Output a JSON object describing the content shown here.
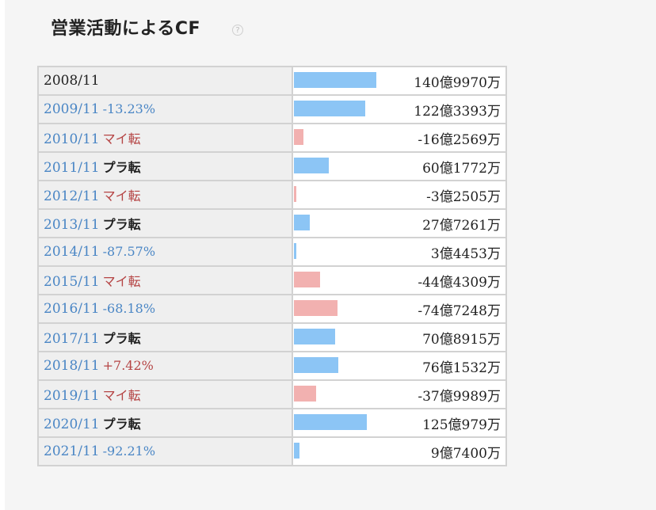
{
  "title": "営業活動によるCF",
  "help_icon_glyph": "?",
  "colors": {
    "positive_bar": "#8cc5f5",
    "negative_bar": "#f2b1b0",
    "link_blue": "#4a86c5",
    "turn_red": "#b54444"
  },
  "chart_data": {
    "type": "bar",
    "unit": "億円",
    "categories": [
      "2008/11",
      "2009/11",
      "2010/11",
      "2011/11",
      "2012/11",
      "2013/11",
      "2014/11",
      "2015/11",
      "2016/11",
      "2017/11",
      "2018/11",
      "2019/11",
      "2020/11",
      "2021/11"
    ],
    "values": [
      140.997,
      122.3393,
      -16.2569,
      60.1772,
      -3.2505,
      27.7261,
      3.4453,
      -44.4309,
      -74.7248,
      70.8915,
      76.1532,
      -37.9989,
      125.0979,
      9.74
    ],
    "rows": [
      {
        "year": "2008/11",
        "change": "",
        "change_style": "none",
        "value_label": "140億9970万",
        "value": 140.997
      },
      {
        "year": "2009/11",
        "change": "-13.23%",
        "change_style": "blue",
        "value_label": "122億3393万",
        "value": 122.3393
      },
      {
        "year": "2010/11",
        "change": "マイ転",
        "change_style": "red",
        "value_label": "-16億2569万",
        "value": -16.2569
      },
      {
        "year": "2011/11",
        "change": "プラ転",
        "change_style": "black",
        "value_label": "60億1772万",
        "value": 60.1772
      },
      {
        "year": "2012/11",
        "change": "マイ転",
        "change_style": "red",
        "value_label": "-3億2505万",
        "value": -3.2505
      },
      {
        "year": "2013/11",
        "change": "プラ転",
        "change_style": "black",
        "value_label": "27億7261万",
        "value": 27.7261
      },
      {
        "year": "2014/11",
        "change": "-87.57%",
        "change_style": "blue",
        "value_label": "3億4453万",
        "value": 3.4453
      },
      {
        "year": "2015/11",
        "change": "マイ転",
        "change_style": "red",
        "value_label": "-44億4309万",
        "value": -44.4309
      },
      {
        "year": "2016/11",
        "change": "-68.18%",
        "change_style": "blue",
        "value_label": "-74億7248万",
        "value": -74.7248
      },
      {
        "year": "2017/11",
        "change": "プラ転",
        "change_style": "black",
        "value_label": "70億8915万",
        "value": 70.8915
      },
      {
        "year": "2018/11",
        "change": "+7.42%",
        "change_style": "red",
        "value_label": "76億1532万",
        "value": 76.1532
      },
      {
        "year": "2019/11",
        "change": "マイ転",
        "change_style": "red",
        "value_label": "-37億9989万",
        "value": -37.9989
      },
      {
        "year": "2020/11",
        "change": "プラ転",
        "change_style": "black",
        "value_label": "125億979万",
        "value": 125.0979
      },
      {
        "year": "2021/11",
        "change": "-92.21%",
        "change_style": "blue",
        "value_label": "9億7400万",
        "value": 9.74
      }
    ]
  }
}
